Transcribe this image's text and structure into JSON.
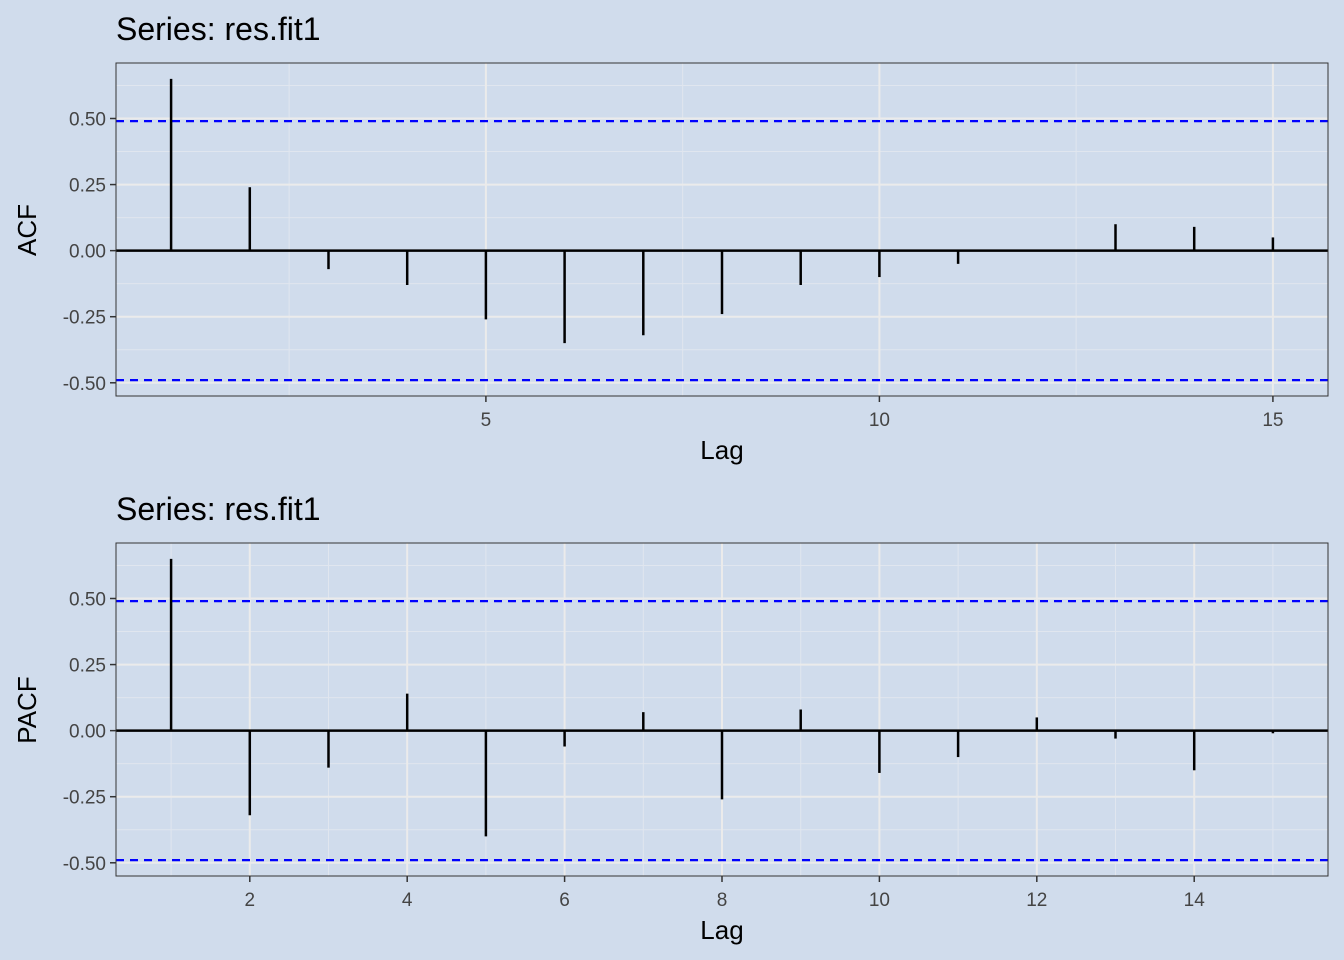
{
  "theme": {
    "background": "#d0dcec",
    "grid_major": "#ebebeb",
    "grid_minor": "#e0e6ef",
    "bar_color": "#000000",
    "confidence_color": "#0000ff",
    "panel_border": "#333333"
  },
  "chart_data": [
    {
      "type": "bar",
      "title": "Series: res.fit1",
      "xlabel": "Lag",
      "ylabel": "ACF",
      "x": [
        1,
        2,
        3,
        4,
        5,
        6,
        7,
        8,
        9,
        10,
        11,
        12,
        13,
        14,
        15
      ],
      "values": [
        0.65,
        0.24,
        -0.07,
        -0.13,
        -0.26,
        -0.35,
        -0.32,
        -0.24,
        -0.13,
        -0.1,
        -0.05,
        0.0,
        0.1,
        0.09,
        0.05
      ],
      "confidence_limits": [
        0.49,
        -0.49
      ],
      "xlim": [
        0.3,
        15.7
      ],
      "ylim": [
        -0.55,
        0.71
      ],
      "xticks": [
        5,
        10,
        15
      ],
      "yticks": [
        0.5,
        0.25,
        0.0,
        -0.25,
        -0.5
      ],
      "ytick_labels": [
        "0.50",
        "0.25",
        "0.00",
        "-0.25",
        "-0.50"
      ],
      "grid": true,
      "legend": "none"
    },
    {
      "type": "bar",
      "title": "Series: res.fit1",
      "xlabel": "Lag",
      "ylabel": "PACF",
      "x": [
        1,
        2,
        3,
        4,
        5,
        6,
        7,
        8,
        9,
        10,
        11,
        12,
        13,
        14,
        15
      ],
      "values": [
        0.65,
        -0.32,
        -0.14,
        0.14,
        -0.4,
        -0.06,
        0.07,
        -0.26,
        0.08,
        -0.16,
        -0.1,
        0.05,
        -0.03,
        -0.15,
        -0.01
      ],
      "confidence_limits": [
        0.49,
        -0.49
      ],
      "xlim": [
        0.3,
        15.7
      ],
      "ylim": [
        -0.55,
        0.71
      ],
      "xticks": [
        2,
        4,
        6,
        8,
        10,
        12,
        14
      ],
      "yticks": [
        0.5,
        0.25,
        0.0,
        -0.25,
        -0.5
      ],
      "ytick_labels": [
        "0.50",
        "0.25",
        "0.00",
        "-0.25",
        "-0.50"
      ],
      "grid": true,
      "legend": "none"
    }
  ]
}
